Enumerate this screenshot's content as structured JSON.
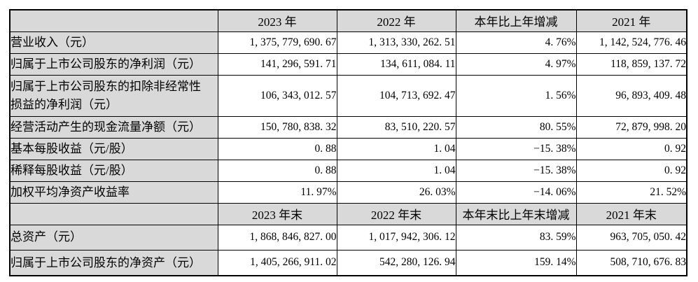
{
  "table": {
    "rows": [
      {
        "type": "header",
        "cells": [
          "",
          "2023 年",
          "2022 年",
          "本年比上年增减",
          "2021 年"
        ]
      },
      {
        "type": "data",
        "cells": [
          "营业收入（元）",
          "1, 375, 779, 690. 67",
          "1, 313, 330, 262. 51",
          "4. 76%",
          "1, 142, 524, 776. 46"
        ]
      },
      {
        "type": "data",
        "cells": [
          "归属于上市公司股东的净利润（元）",
          "141, 296, 591. 71",
          "134, 611, 084. 11",
          "4. 97%",
          "118, 859, 137. 72"
        ]
      },
      {
        "type": "data",
        "cells": [
          "归属于上市公司股东的扣除非经常性\n损益的净利润（元）",
          "106, 343, 012. 57",
          "104, 713, 692. 47",
          "1. 56%",
          "96, 893, 409. 48"
        ]
      },
      {
        "type": "data",
        "cells": [
          "经营活动产生的现金流量净额（元）",
          "150, 780, 838. 32",
          "83, 510, 220. 57",
          "80. 55%",
          "72, 879, 998. 20"
        ]
      },
      {
        "type": "data",
        "cells": [
          "基本每股收益（元/股）",
          "0. 88",
          "1. 04",
          "−15. 38%",
          "0. 92"
        ]
      },
      {
        "type": "data",
        "cells": [
          "稀释每股收益（元/股）",
          "0. 88",
          "1. 04",
          "−15. 38%",
          "0. 92"
        ]
      },
      {
        "type": "data",
        "cells": [
          "加权平均净资产收益率",
          "11. 97%",
          "26. 03%",
          "−14. 06%",
          "21. 52%"
        ]
      },
      {
        "type": "header",
        "cells": [
          "",
          "2023 年末",
          "2022 年末",
          "本年末比上年末增减",
          "2021 年末"
        ]
      },
      {
        "type": "data",
        "cells": [
          "总资产（元）",
          "1, 868, 846, 827. 00",
          "1, 017, 942, 306. 12",
          "83. 59%",
          "963, 705, 050. 42"
        ]
      },
      {
        "type": "data",
        "cells": [
          "归属于上市公司股东的净资产（元）",
          "1, 405, 266, 911. 02",
          "542, 280, 126. 94",
          "159. 14%",
          "508, 710, 676. 83"
        ]
      }
    ]
  }
}
